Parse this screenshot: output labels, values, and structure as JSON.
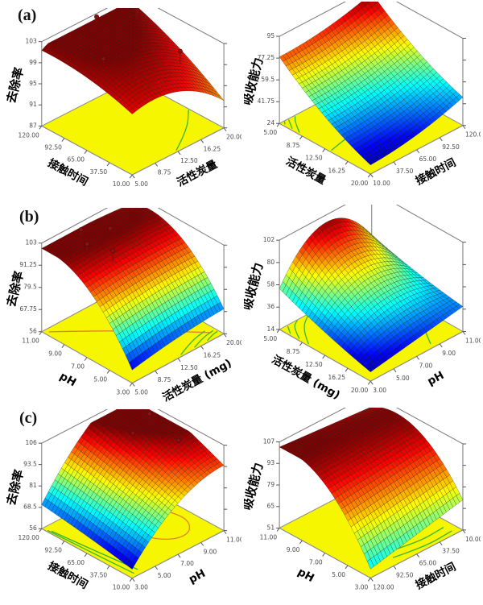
{
  "figure": {
    "background": "#ffffff",
    "panels": [
      {
        "label": "(a)"
      },
      {
        "label": "(b)"
      },
      {
        "label": "(c)"
      }
    ]
  },
  "chart_data": [
    {
      "type": "surface3d",
      "panel": "a",
      "position": "left",
      "zlabel": "去除率",
      "zticks": [
        "103",
        "99",
        "95",
        "91",
        "87"
      ],
      "axis_left": {
        "label": "接触时间",
        "ticks": [
          "120.00",
          "92.50",
          "65.00",
          "37.50",
          "10.00"
        ]
      },
      "axis_right": {
        "label": "活性炭量",
        "ticks": [
          "5.00",
          "8.75",
          "12.50",
          "16.25",
          "20.00"
        ]
      },
      "zrange": [
        87,
        103
      ],
      "surface": {
        "a": 0.75,
        "bu": 0.45,
        "bv": 0.4,
        "cuu": -0.25,
        "cvv": -0.85,
        "cuv": 0.45,
        "arch": 0
      },
      "cmap_range": [
        0.58,
        1.0
      ],
      "floor_color": "#f6f600",
      "contours": [
        {
          "color": "#35b535",
          "pts": [
            [
              0.02,
              0.5
            ],
            [
              0.18,
              0.78
            ],
            [
              0.38,
              0.99
            ]
          ]
        }
      ],
      "points": [
        {
          "u": 0.78,
          "v": 0.82,
          "h": 22
        },
        {
          "u": 0.5,
          "v": 0.18,
          "h": 5
        },
        {
          "u": 0.28,
          "v": 0.8,
          "h": 16
        },
        {
          "u": 0.95,
          "v": 0.55,
          "h": 8
        }
      ]
    },
    {
      "type": "surface3d",
      "panel": "a",
      "position": "right",
      "zlabel": "吸收能力",
      "zticks": [
        "95",
        "77.25",
        "59.5",
        "41.75",
        "24"
      ],
      "axis_left": {
        "label": "活性炭量",
        "ticks": [
          "5.00",
          "8.75",
          "12.50",
          "16.25",
          "20.00"
        ]
      },
      "axis_right": {
        "label": "接触时间",
        "ticks": [
          "10.00",
          "37.50",
          "65.00",
          "92.50",
          "120.00"
        ]
      },
      "zrange": [
        24,
        95
      ],
      "surface": {
        "a": 0.05,
        "bu": 0.45,
        "bv": 0.05,
        "cuu": 0.3,
        "cvv": 0.2,
        "cuv": -0.05,
        "arch": 0
      },
      "cmap_range": [
        0.0,
        1.0
      ],
      "floor_color": "#f6f600",
      "contours": [
        {
          "color": "#35b535",
          "pts": [
            [
              0.8,
              0.02
            ],
            [
              0.93,
              0.1
            ],
            [
              0.99,
              0.16
            ]
          ]
        },
        {
          "color": "#35b535",
          "pts": [
            [
              0.88,
              0.02
            ],
            [
              0.99,
              0.09
            ]
          ]
        },
        {
          "color": "#35b535",
          "pts": [
            [
              0.96,
              0.02
            ],
            [
              0.995,
              0.05
            ]
          ]
        },
        {
          "color": "#35b535",
          "pts": [
            [
              0.45,
              0.02
            ],
            [
              0.56,
              0.5
            ],
            [
              0.5,
              0.99
            ]
          ]
        }
      ],
      "points": []
    },
    {
      "type": "surface3d",
      "panel": "b",
      "position": "left",
      "zlabel": "去除率",
      "zticks": [
        "103",
        "91.25",
        "79.5",
        "67.75",
        "56"
      ],
      "axis_left": {
        "label": "pH",
        "ticks": [
          "11.00",
          "9.00",
          "7.00",
          "5.00",
          "3.00"
        ]
      },
      "axis_right": {
        "label": "活性炭量 (mg)",
        "ticks": [
          "5.00",
          "8.75",
          "12.50",
          "16.25",
          "20.00"
        ]
      },
      "zrange": [
        56,
        103
      ],
      "surface": {
        "a": 0.1,
        "bu": 2.0,
        "bv": 0.25,
        "cuu": -1.1,
        "cvv": -0.1,
        "cuv": -0.2,
        "arch": 0
      },
      "cmap_range": [
        0.0,
        1.0
      ],
      "floor_color": "#f6f600",
      "contours": [
        {
          "color": "#e0862a",
          "pts": [
            [
              0.96,
              0.04
            ],
            [
              0.55,
              0.5
            ],
            [
              0.08,
              0.94
            ]
          ]
        },
        {
          "color": "#35b535",
          "pts": [
            [
              0.02,
              0.55
            ],
            [
              0.1,
              0.74
            ],
            [
              0.13,
              0.92
            ]
          ]
        },
        {
          "color": "#35b535",
          "pts": [
            [
              0.02,
              0.7
            ],
            [
              0.07,
              0.83
            ],
            [
              0.09,
              0.97
            ]
          ]
        },
        {
          "color": "#35b535",
          "pts": [
            [
              0.02,
              0.84
            ],
            [
              0.05,
              0.92
            ],
            [
              0.06,
              0.99
            ]
          ]
        }
      ],
      "points": [
        {
          "u": 0.92,
          "v": 0.35,
          "h": 7
        },
        {
          "u": 0.72,
          "v": 0.22,
          "h": 11
        },
        {
          "u": 0.8,
          "v": 0.55,
          "h": 4
        },
        {
          "u": 0.55,
          "v": 0.33,
          "h": 15
        },
        {
          "u": 0.9,
          "v": 0.88,
          "h": 9
        }
      ]
    },
    {
      "type": "surface3d",
      "panel": "b",
      "position": "right",
      "zlabel": "吸收能力",
      "zticks": [
        "102",
        "80",
        "58",
        "36",
        "14"
      ],
      "axis_left": {
        "label": "活性炭量 (mg)",
        "ticks": [
          "5.00",
          "8.75",
          "12.50",
          "16.25",
          "20.00"
        ]
      },
      "axis_right": {
        "label": "pH",
        "ticks": [
          "3.00",
          "5.00",
          "7.00",
          "9.00",
          "11.00"
        ]
      },
      "zrange": [
        14,
        102
      ],
      "surface": {
        "a": 0.05,
        "bu": 0.3,
        "bv": 0.2,
        "cuu": 0.1,
        "cvv": 0.0,
        "cuv": -0.15,
        "arch": 2.0
      },
      "cmap_range": [
        0.0,
        1.0
      ],
      "floor_color": "#f6f600",
      "contours": [
        {
          "color": "#35b535",
          "pts": [
            [
              0.7,
              0.02
            ],
            [
              0.88,
              0.13
            ],
            [
              0.99,
              0.3
            ]
          ]
        },
        {
          "color": "#35b535",
          "pts": [
            [
              0.8,
              0.02
            ],
            [
              0.95,
              0.1
            ],
            [
              0.995,
              0.19
            ]
          ]
        },
        {
          "color": "#35b535",
          "pts": [
            [
              0.9,
              0.02
            ],
            [
              0.99,
              0.08
            ]
          ]
        },
        {
          "color": "#35b535",
          "pts": [
            [
              0.05,
              0.7
            ],
            [
              0.3,
              0.85
            ],
            [
              0.45,
              0.99
            ]
          ]
        }
      ],
      "points": []
    },
    {
      "type": "surface3d",
      "panel": "c",
      "position": "left",
      "zlabel": "去除率",
      "zticks": [
        "106",
        "93.5",
        "81",
        "68.5",
        "56"
      ],
      "axis_left": {
        "label": "接触时间",
        "ticks": [
          "120.00",
          "92.50",
          "65.00",
          "37.50",
          "10.00"
        ]
      },
      "axis_right": {
        "label": "pH",
        "ticks": [
          "3.00",
          "5.00",
          "7.00",
          "9.00",
          "11.00"
        ]
      },
      "zrange": [
        56,
        106
      ],
      "surface": {
        "a": 0.05,
        "bu": 0.25,
        "bv": 1.5,
        "cuu": -0.05,
        "cvv": -0.75,
        "cuv": 0.3,
        "arch": 0
      },
      "cmap_range": [
        0.0,
        1.0
      ],
      "floor_color": "#f6f600",
      "contours": [
        {
          "color": "#35b535",
          "pts": [
            [
              0.92,
              0.03
            ],
            [
              0.5,
              0.07
            ],
            [
              0.06,
              0.12
            ]
          ]
        },
        {
          "color": "#35b535",
          "pts": [
            [
              0.95,
              0.015
            ],
            [
              0.5,
              0.035
            ],
            [
              0.04,
              0.06
            ]
          ]
        },
        {
          "color": "#e0862a",
          "pts": [
            [
              0.6,
              0.52
            ],
            [
              0.36,
              0.48
            ],
            [
              0.17,
              0.62
            ],
            [
              0.16,
              0.8
            ],
            [
              0.32,
              0.92
            ],
            [
              0.52,
              0.88
            ]
          ]
        }
      ],
      "points": [
        {
          "u": 0.62,
          "v": 0.62,
          "h": 11
        },
        {
          "u": 0.72,
          "v": 0.9,
          "h": 7
        },
        {
          "u": 0.35,
          "v": 0.85,
          "h": 4
        }
      ]
    },
    {
      "type": "surface3d",
      "panel": "c",
      "position": "right",
      "zlabel": "吸收能力",
      "zticks": [
        "107",
        "93",
        "79",
        "65",
        "51"
      ],
      "axis_left": {
        "label": "pH",
        "ticks": [
          "11.00",
          "9.00",
          "7.00",
          "5.00",
          "3.00"
        ]
      },
      "axis_right": {
        "label": "接触时间",
        "ticks": [
          "120.00",
          "92.50",
          "65.00",
          "37.50",
          "10.00"
        ]
      },
      "zrange": [
        51,
        107
      ],
      "surface": {
        "a": 0.05,
        "bu": 2.2,
        "bv": 0.28,
        "cuu": -1.25,
        "cvv": 0.0,
        "cuv": -0.38,
        "arch": 0
      },
      "cmap_range": [
        0.33,
        1.0
      ],
      "floor_color": "#f6f600",
      "contours": [
        {
          "color": "#35b535",
          "pts": [
            [
              0.2,
              0.28
            ],
            [
              0.11,
              0.6
            ],
            [
              0.13,
              0.92
            ]
          ]
        },
        {
          "color": "#35b535",
          "pts": [
            [
              0.09,
              0.33
            ],
            [
              0.03,
              0.62
            ],
            [
              0.05,
              0.93
            ]
          ]
        }
      ],
      "points": []
    }
  ]
}
